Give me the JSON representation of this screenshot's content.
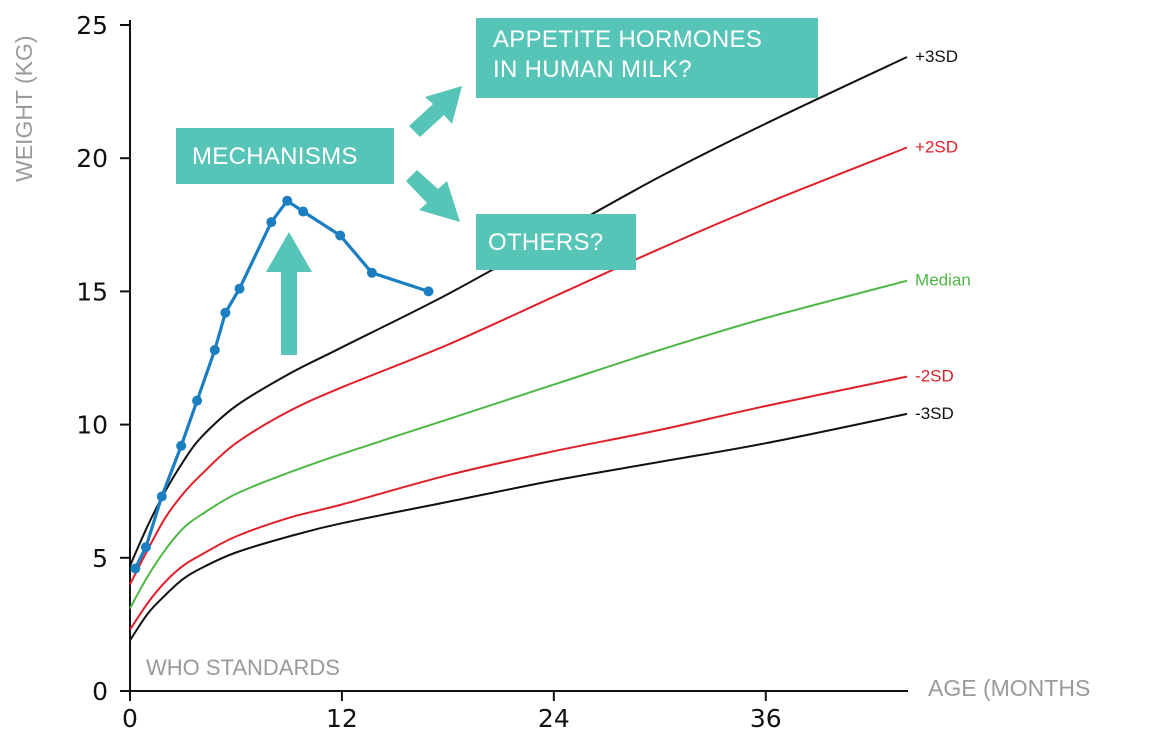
{
  "chart_data": {
    "type": "line",
    "xlabel": "AGE (MONTHS",
    "ylabel": "WEIGHT (KG)",
    "annotation_corner": "WHO STANDARDS",
    "xlim": [
      0,
      44
    ],
    "ylim": [
      0,
      25
    ],
    "xticks": [
      0,
      12,
      24,
      36
    ],
    "yticks": [
      0,
      5,
      10,
      15,
      20,
      25
    ],
    "grid": false,
    "colors": {
      "teal": "#57c4b8",
      "blue": "#1a7ec0",
      "red": "#e0202a",
      "green": "#4eb847",
      "black": "#111111",
      "axis_title": "#9a9a9a"
    },
    "reference_curves": [
      {
        "name": "+3SD",
        "color": "#111111",
        "x": [
          0,
          1,
          2,
          3,
          4,
          6,
          9,
          12,
          18,
          24,
          30,
          36,
          44
        ],
        "y": [
          4.7,
          6.2,
          7.5,
          8.6,
          9.5,
          10.7,
          11.9,
          12.9,
          14.9,
          17.1,
          19.3,
          21.3,
          23.8
        ]
      },
      {
        "name": "+2SD",
        "color": "#e0202a",
        "x": [
          0,
          1,
          2,
          3,
          4,
          6,
          9,
          12,
          18,
          24,
          30,
          36,
          44
        ],
        "y": [
          4.0,
          5.3,
          6.5,
          7.4,
          8.1,
          9.3,
          10.5,
          11.4,
          13.0,
          14.8,
          16.6,
          18.3,
          20.4
        ]
      },
      {
        "name": "Median",
        "color": "#4eb847",
        "x": [
          0,
          1,
          2,
          3,
          4,
          6,
          9,
          12,
          18,
          24,
          30,
          36,
          44
        ],
        "y": [
          3.1,
          4.3,
          5.3,
          6.1,
          6.6,
          7.4,
          8.2,
          8.9,
          10.2,
          11.5,
          12.8,
          14.0,
          15.4
        ]
      },
      {
        "name": "-2SD",
        "color": "#e0202a",
        "x": [
          0,
          1,
          2,
          3,
          4,
          6,
          9,
          12,
          18,
          24,
          30,
          36,
          44
        ],
        "y": [
          2.3,
          3.3,
          4.1,
          4.7,
          5.1,
          5.8,
          6.5,
          7.0,
          8.1,
          9.0,
          9.8,
          10.7,
          11.8
        ]
      },
      {
        "name": "-3SD",
        "color": "#111111",
        "x": [
          0,
          1,
          2,
          3,
          4,
          6,
          9,
          12,
          18,
          24,
          30,
          36,
          44
        ],
        "y": [
          1.9,
          2.9,
          3.6,
          4.2,
          4.6,
          5.2,
          5.8,
          6.3,
          7.1,
          7.9,
          8.6,
          9.3,
          10.4
        ]
      }
    ],
    "series": [
      {
        "color": "#1a7ec0",
        "x": [
          0.3,
          0.9,
          1.8,
          2.9,
          3.8,
          4.8,
          5.4,
          6.2,
          8.0,
          8.9,
          9.8,
          11.9,
          13.7,
          16.9
        ],
        "y": [
          4.6,
          5.4,
          7.3,
          9.2,
          10.9,
          12.8,
          14.2,
          15.1,
          17.6,
          18.4,
          18.0,
          17.1,
          15.7,
          15.0
        ]
      }
    ]
  },
  "annotations": {
    "appetite": [
      "APPETITE HORMONES",
      "IN HUMAN MILK?"
    ],
    "mechanisms": "MECHANISMS",
    "others": "OTHERS?"
  }
}
